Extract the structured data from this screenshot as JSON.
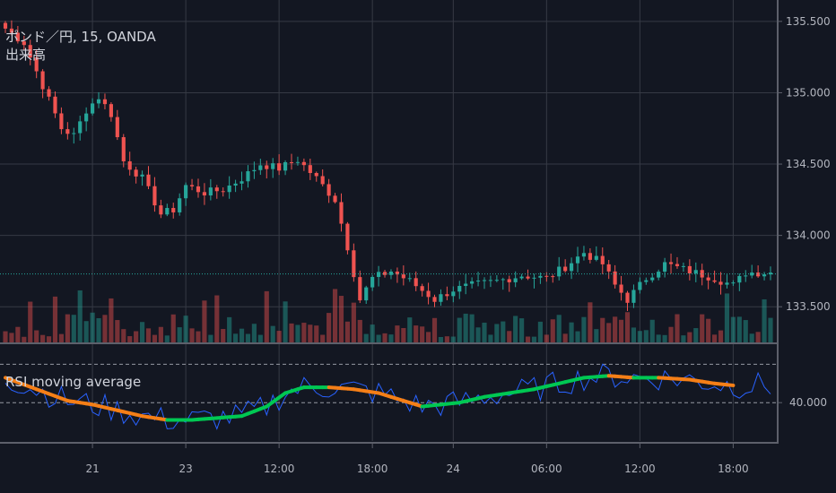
{
  "header": {
    "symbol_line": "ポンド／円, 15, OANDA",
    "volume_label": "出来高",
    "rsi_label": "RSI moving average"
  },
  "colors": {
    "background": "#131722",
    "grid": "#363a45",
    "up": "#26a69a",
    "down": "#ef5350",
    "last_price_line": "#26a69a",
    "rsi_line": "#2962ff",
    "ma_up": "#00c853",
    "ma_down": "#f57f17",
    "axis_text": "#b2b5be"
  },
  "chart_data": [
    {
      "type": "candlestick",
      "price_ticks": [
        "135.500",
        "135.000",
        "134.500",
        "134.000",
        "133.500"
      ],
      "price_tick_values": [
        135.5,
        135.0,
        134.5,
        134.0,
        133.5
      ],
      "ylim": [
        133.25,
        135.65
      ],
      "last_price": 133.73,
      "time_ticks": [
        "21",
        "23",
        "12:00",
        "18:00",
        "24",
        "06:00",
        "12:00",
        "18:00"
      ],
      "time_tick_index": [
        14,
        29,
        44,
        59,
        72,
        87,
        102,
        117
      ],
      "num_bars": 124,
      "close_path": [
        [
          0,
          135.45
        ],
        [
          3,
          135.35
        ],
        [
          6,
          135.05
        ],
        [
          9,
          134.75
        ],
        [
          11,
          134.7
        ],
        [
          13,
          134.88
        ],
        [
          15,
          134.97
        ],
        [
          17,
          134.85
        ],
        [
          19,
          134.52
        ],
        [
          22,
          134.4
        ],
        [
          25,
          134.15
        ],
        [
          27,
          134.18
        ],
        [
          29,
          134.35
        ],
        [
          32,
          134.3
        ],
        [
          35,
          134.32
        ],
        [
          38,
          134.4
        ],
        [
          41,
          134.5
        ],
        [
          44,
          134.47
        ],
        [
          47,
          134.53
        ],
        [
          50,
          134.4
        ],
        [
          53,
          134.25
        ],
        [
          55,
          133.92
        ],
        [
          57,
          133.55
        ],
        [
          59,
          133.7
        ],
        [
          62,
          133.75
        ],
        [
          65,
          133.68
        ],
        [
          69,
          133.55
        ],
        [
          72,
          133.62
        ],
        [
          75,
          133.65
        ],
        [
          79,
          133.68
        ],
        [
          83,
          133.72
        ],
        [
          87,
          133.7
        ],
        [
          90,
          133.78
        ],
        [
          93,
          133.88
        ],
        [
          96,
          133.8
        ],
        [
          98,
          133.65
        ],
        [
          100,
          133.55
        ],
        [
          103,
          133.7
        ],
        [
          106,
          133.8
        ],
        [
          110,
          133.75
        ],
        [
          114,
          133.7
        ],
        [
          117,
          133.65
        ],
        [
          119,
          133.74
        ]
      ],
      "volume_ylim": [
        0,
        100
      ]
    },
    {
      "type": "line",
      "title": "RSI moving average",
      "level_ticks": [
        "40.000"
      ],
      "level_tick_values": [
        40
      ],
      "dashed_levels": [
        40,
        60
      ],
      "ylim": [
        20,
        70
      ],
      "ma_points": [
        [
          0,
          53
        ],
        [
          5,
          47
        ],
        [
          10,
          41
        ],
        [
          14,
          39
        ],
        [
          18,
          36
        ],
        [
          22,
          33
        ],
        [
          26,
          31
        ],
        [
          30,
          31
        ],
        [
          34,
          32
        ],
        [
          38,
          33
        ],
        [
          42,
          38
        ],
        [
          45,
          45
        ],
        [
          48,
          48
        ],
        [
          52,
          48
        ],
        [
          56,
          47
        ],
        [
          60,
          45
        ],
        [
          64,
          41
        ],
        [
          67,
          38
        ],
        [
          70,
          39
        ],
        [
          73,
          40
        ],
        [
          77,
          43
        ],
        [
          81,
          45
        ],
        [
          85,
          47
        ],
        [
          89,
          50
        ],
        [
          93,
          53
        ],
        [
          97,
          54
        ],
        [
          101,
          53
        ],
        [
          105,
          53
        ],
        [
          110,
          52
        ],
        [
          114,
          50
        ],
        [
          117,
          49
        ]
      ]
    }
  ]
}
